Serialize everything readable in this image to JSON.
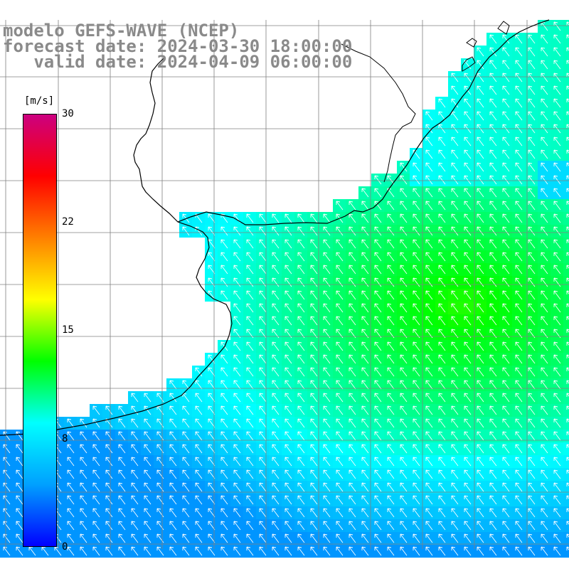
{
  "title": {
    "line1": "modelo GEFS-WAVE (NCEP)",
    "line2": "forecast date: 2024-03-30 18:00:00",
    "line3": "   valid date: 2024-04-09 06:00:00"
  },
  "colorbar": {
    "unit": "[m/s]",
    "min": 0,
    "max": 30,
    "ticks": [
      "30",
      "22",
      "15",
      "8",
      "0"
    ],
    "tick_values": [
      30,
      22,
      15,
      8,
      0
    ],
    "stops": [
      "#0000ff",
      "#00a0ff",
      "#00ffff",
      "#00ff00",
      "#ffff00",
      "#ff8000",
      "#ff0000",
      "#cc0080"
    ]
  },
  "map": {
    "variable": "wind speed",
    "land_color": "#ffffff",
    "coastline_color": "#000000",
    "grid_color": "#808080",
    "arrow_color": "#ffffff",
    "arrow_direction": "north-west"
  }
}
